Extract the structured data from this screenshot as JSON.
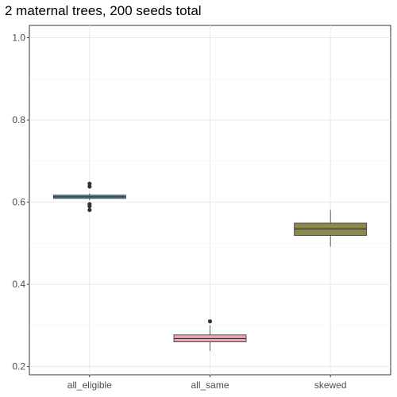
{
  "chart_data": {
    "type": "boxplot",
    "title": "2 maternal trees, 200 seeds total",
    "xlabel": "",
    "ylabel": "",
    "ylim": [
      0.18,
      1.03
    ],
    "yticks": [
      0.2,
      0.4,
      0.6,
      0.8,
      1.0
    ],
    "ytick_labels": [
      "0.2",
      "0.4",
      "0.6",
      "0.8",
      "1.0"
    ],
    "grid": true,
    "legend": "none",
    "categories": [
      "all_eligible",
      "all_same",
      "skewed"
    ],
    "boxes": [
      {
        "category": "all_eligible",
        "whisker_low": 0.605,
        "q1": 0.609,
        "median": 0.613,
        "q3": 0.617,
        "whisker_high": 0.621,
        "outliers": [
          0.645,
          0.638,
          0.595,
          0.59,
          0.581
        ],
        "fill": "#5b8ea3"
      },
      {
        "category": "all_same",
        "whisker_low": 0.238,
        "q1": 0.26,
        "median": 0.268,
        "q3": 0.277,
        "whisker_high": 0.3,
        "outliers": [
          0.31
        ],
        "fill": "#f2a3b1"
      },
      {
        "category": "skewed",
        "whisker_low": 0.492,
        "q1": 0.519,
        "median": 0.535,
        "q3": 0.549,
        "whisker_high": 0.581,
        "outliers": [],
        "fill": "#8c8a4a"
      }
    ]
  }
}
